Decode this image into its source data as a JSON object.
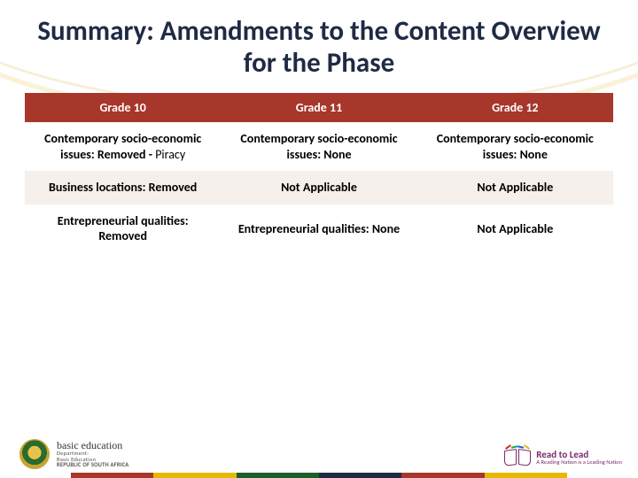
{
  "slide": {
    "title": "Summary: Amendments to the Content Overview for the Phase",
    "title_color": "#1f2a44",
    "title_fontsize": 31
  },
  "table": {
    "type": "table",
    "columns": [
      "Grade 10",
      "Grade 11",
      "Grade 12"
    ],
    "header": {
      "background_color": "#a7362b",
      "text_color": "#ffffff",
      "fontsize": 14
    },
    "body": {
      "fontsize": 14,
      "text_color": "#000000",
      "row_colors": [
        "#ffffff",
        "#f5f0ec"
      ]
    },
    "rows": [
      {
        "c0_bold": "Contemporary socio-economic issues: Removed - ",
        "c0_nobold": "Piracy",
        "c1": "Contemporary socio-economic issues: None",
        "c2": "Contemporary socio-economic issues: None"
      },
      {
        "c0_bold": "Business locations: Removed",
        "c0_nobold": "",
        "c1": "Not Applicable",
        "c2": "Not Applicable"
      },
      {
        "c0_bold": "Entrepreneurial qualities: Removed",
        "c0_nobold": "",
        "c1": "Entrepreneurial qualities: None",
        "c2": "Not Applicable"
      }
    ]
  },
  "footer": {
    "gov_logo": {
      "line1": "basic education",
      "line2": "Department:",
      "line3": "Basic Education",
      "line4": "REPUBLIC OF SOUTH AFRICA"
    },
    "campaign_logo": {
      "title": "Read to Lead",
      "tagline": "A Reading Nation is a Leading Nation"
    },
    "stripe_colors": [
      "#a7362b",
      "#e6b800",
      "#1a5e2a",
      "#1f2a44",
      "#a7362b",
      "#e6b800"
    ]
  },
  "background": {
    "color": "#ffffff",
    "arc_stroke": "#f0d890"
  }
}
